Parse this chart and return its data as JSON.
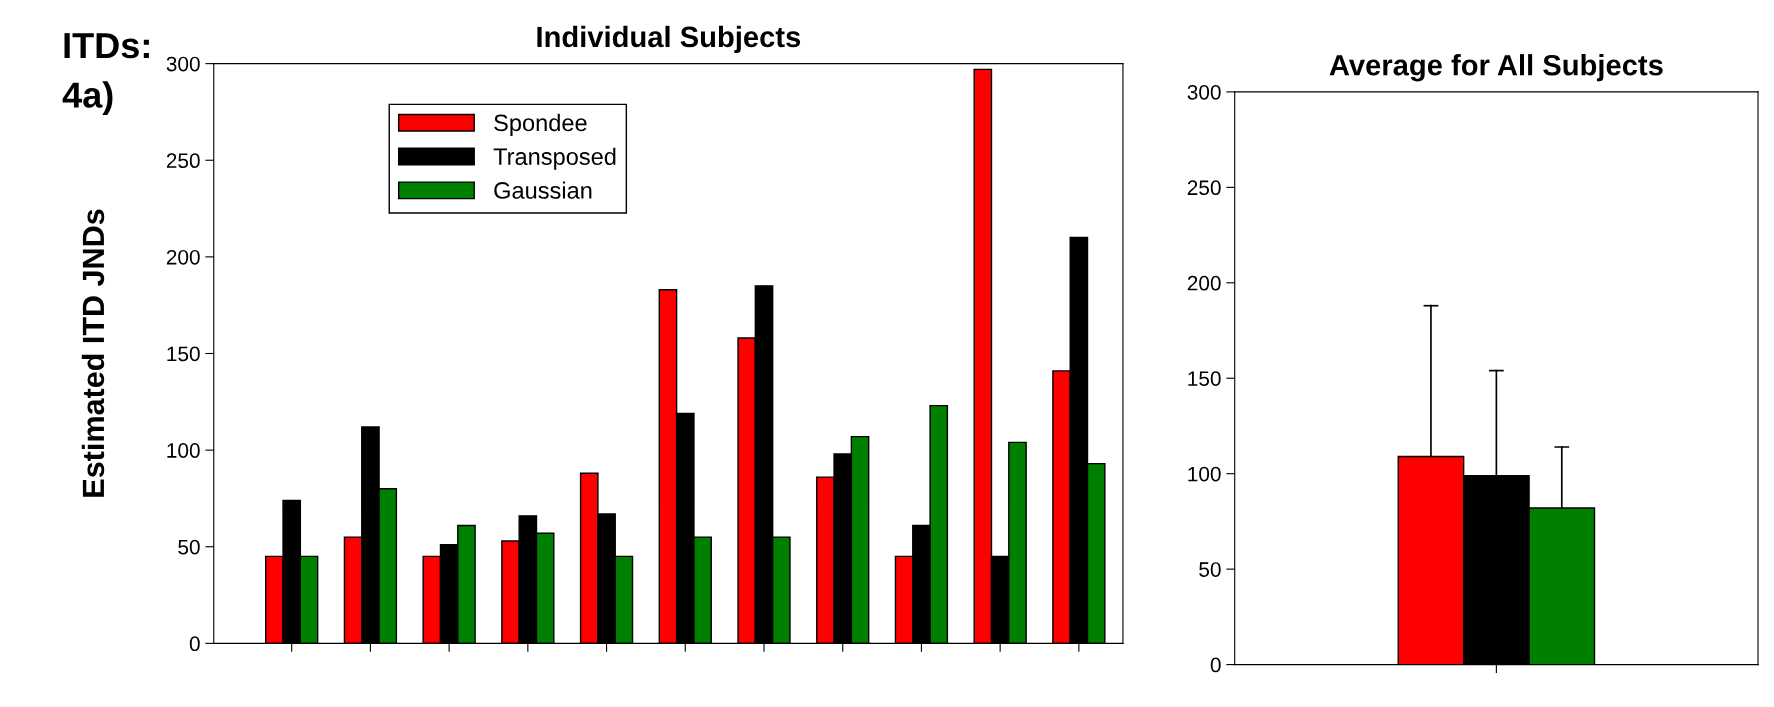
{
  "chart_data": [
    {
      "type": "bar",
      "title": "Individual Subjects",
      "ylabel": "Estimated ITD JNDs",
      "annotations": [
        "ITDs:",
        "4a)"
      ],
      "categories": [
        null,
        null,
        null,
        null,
        null,
        null,
        null,
        null,
        null,
        null,
        null
      ],
      "series": [
        {
          "name": "Spondee",
          "color": "#ff0000",
          "values": [
            45,
            55,
            45,
            53,
            88,
            183,
            158,
            86,
            45,
            297,
            141
          ]
        },
        {
          "name": "Transposed",
          "color": "#000000",
          "values": [
            74,
            112,
            51,
            66,
            67,
            119,
            185,
            98,
            61,
            45,
            210
          ]
        },
        {
          "name": "Gaussian",
          "color": "#008000",
          "values": [
            45,
            80,
            61,
            57,
            45,
            55,
            55,
            107,
            123,
            104,
            93
          ]
        }
      ],
      "ylim": [
        0,
        300
      ],
      "yticks": [
        0,
        50,
        100,
        150,
        200,
        250,
        300
      ],
      "legend": "top left",
      "grid": false
    },
    {
      "type": "bar",
      "title": "Average for All Subjects",
      "categories": [
        null
      ],
      "series": [
        {
          "color": "#ff0000",
          "values": [
            109
          ],
          "errors": [
            [
              109,
              188
            ]
          ]
        },
        {
          "color": "#000000",
          "values": [
            99
          ],
          "errors": [
            [
              99,
              154
            ]
          ]
        },
        {
          "color": "#008000",
          "values": [
            82
          ],
          "errors": [
            [
              82,
              114
            ]
          ]
        }
      ],
      "ylim": [
        0,
        300
      ],
      "yticks": [
        0,
        50,
        100,
        150,
        200,
        250,
        300
      ],
      "grid": false
    }
  ]
}
